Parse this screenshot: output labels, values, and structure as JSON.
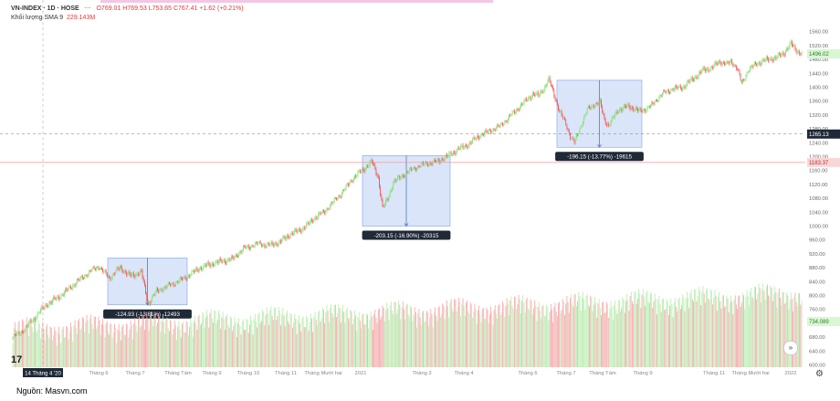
{
  "legend": {
    "symbol": "VN-INDEX · 1D · HOSE",
    "ohlc": "O769.01  H769.53  L753.65  C767.41  +1.62 (+0.21%)",
    "volume_label": "Khối lượng SMA 9",
    "volume_value": "229.143M"
  },
  "source": "Nguồn: Masvn.com",
  "colors": {
    "up": "#7fe16b",
    "down": "#ef5350",
    "vol_up": "#b6ecad",
    "vol_down": "#f3a6a6",
    "box": "#cfdcf7"
  },
  "chart_data": {
    "type": "candlestick",
    "y_ticks": [
      "1560.00",
      "1520.00",
      "1480.00",
      "1440.00",
      "1400.00",
      "1360.00",
      "1320.00",
      "1280.00",
      "1240.00",
      "1200.00",
      "1160.00",
      "1120.00",
      "1080.00",
      "1040.00",
      "1000.00",
      "960.00",
      "920.00",
      "880.00",
      "840.00",
      "800.00",
      "760.00",
      "720.00",
      "680.00",
      "640.00",
      "600.00"
    ],
    "x_ticks": [
      "14 Tháng 4 '20",
      "Tháng 6",
      "Tháng 7",
      "Tháng Tám",
      "Tháng 9",
      "Tháng 10",
      "Tháng 11",
      "Tháng Mười hai",
      "2021",
      "Tháng 3",
      "Tháng 4",
      "Tháng 6",
      "Tháng 7",
      "Tháng Tám",
      "Tháng 9",
      "Tháng 11",
      "Tháng Mười hai",
      "2022"
    ],
    "price_labels": {
      "last": "1496.02",
      "crosshair": "1265.13",
      "red_line": "1183.37",
      "volume": "734.089"
    },
    "path": [
      [
        0,
        680
      ],
      [
        10,
        700
      ],
      [
        20,
        735
      ],
      [
        30,
        770
      ],
      [
        45,
        800
      ],
      [
        60,
        840
      ],
      [
        72,
        870
      ],
      [
        80,
        885
      ],
      [
        90,
        850
      ],
      [
        100,
        880
      ],
      [
        110,
        855
      ],
      [
        120,
        868
      ],
      [
        126,
        775
      ],
      [
        134,
        812
      ],
      [
        146,
        830
      ],
      [
        160,
        850
      ],
      [
        175,
        880
      ],
      [
        190,
        895
      ],
      [
        205,
        905
      ],
      [
        215,
        935
      ],
      [
        228,
        950
      ],
      [
        240,
        945
      ],
      [
        250,
        955
      ],
      [
        258,
        975
      ],
      [
        266,
        985
      ],
      [
        274,
        1000
      ],
      [
        282,
        1025
      ],
      [
        290,
        1040
      ],
      [
        299,
        1070
      ],
      [
        308,
        1100
      ],
      [
        318,
        1140
      ],
      [
        326,
        1160
      ],
      [
        335,
        1185
      ],
      [
        341,
        1140
      ],
      [
        345,
        1050
      ],
      [
        350,
        1080
      ],
      [
        355,
        1125
      ],
      [
        365,
        1150
      ],
      [
        376,
        1170
      ],
      [
        385,
        1180
      ],
      [
        395,
        1185
      ],
      [
        405,
        1200
      ],
      [
        415,
        1220
      ],
      [
        425,
        1235
      ],
      [
        435,
        1260
      ],
      [
        445,
        1275
      ],
      [
        455,
        1290
      ],
      [
        465,
        1320
      ],
      [
        475,
        1350
      ],
      [
        485,
        1380
      ],
      [
        490,
        1375
      ],
      [
        495,
        1395
      ],
      [
        500,
        1420
      ],
      [
        504,
        1390
      ],
      [
        510,
        1330
      ],
      [
        516,
        1295
      ],
      [
        520,
        1260
      ],
      [
        524,
        1240
      ],
      [
        530,
        1290
      ],
      [
        536,
        1335
      ],
      [
        542,
        1350
      ],
      [
        548,
        1355
      ],
      [
        552,
        1305
      ],
      [
        556,
        1290
      ],
      [
        565,
        1335
      ],
      [
        575,
        1345
      ],
      [
        585,
        1330
      ],
      [
        595,
        1345
      ],
      [
        605,
        1380
      ],
      [
        615,
        1395
      ],
      [
        625,
        1400
      ],
      [
        635,
        1425
      ],
      [
        645,
        1450
      ],
      [
        652,
        1455
      ],
      [
        660,
        1475
      ],
      [
        666,
        1465
      ],
      [
        670,
        1475
      ],
      [
        676,
        1455
      ],
      [
        680,
        1410
      ],
      [
        686,
        1450
      ],
      [
        695,
        1470
      ],
      [
        705,
        1480
      ],
      [
        713,
        1485
      ],
      [
        720,
        1500
      ],
      [
        726,
        1525
      ],
      [
        730,
        1510
      ],
      [
        736,
        1495
      ]
    ],
    "drawdowns": [
      {
        "label": "-124.93 (-13.81%) -12493"
      },
      {
        "label": "-203.15 (-16.90%) -20315"
      },
      {
        "label": "-196.15 (-13.77%) -19615"
      }
    ]
  }
}
